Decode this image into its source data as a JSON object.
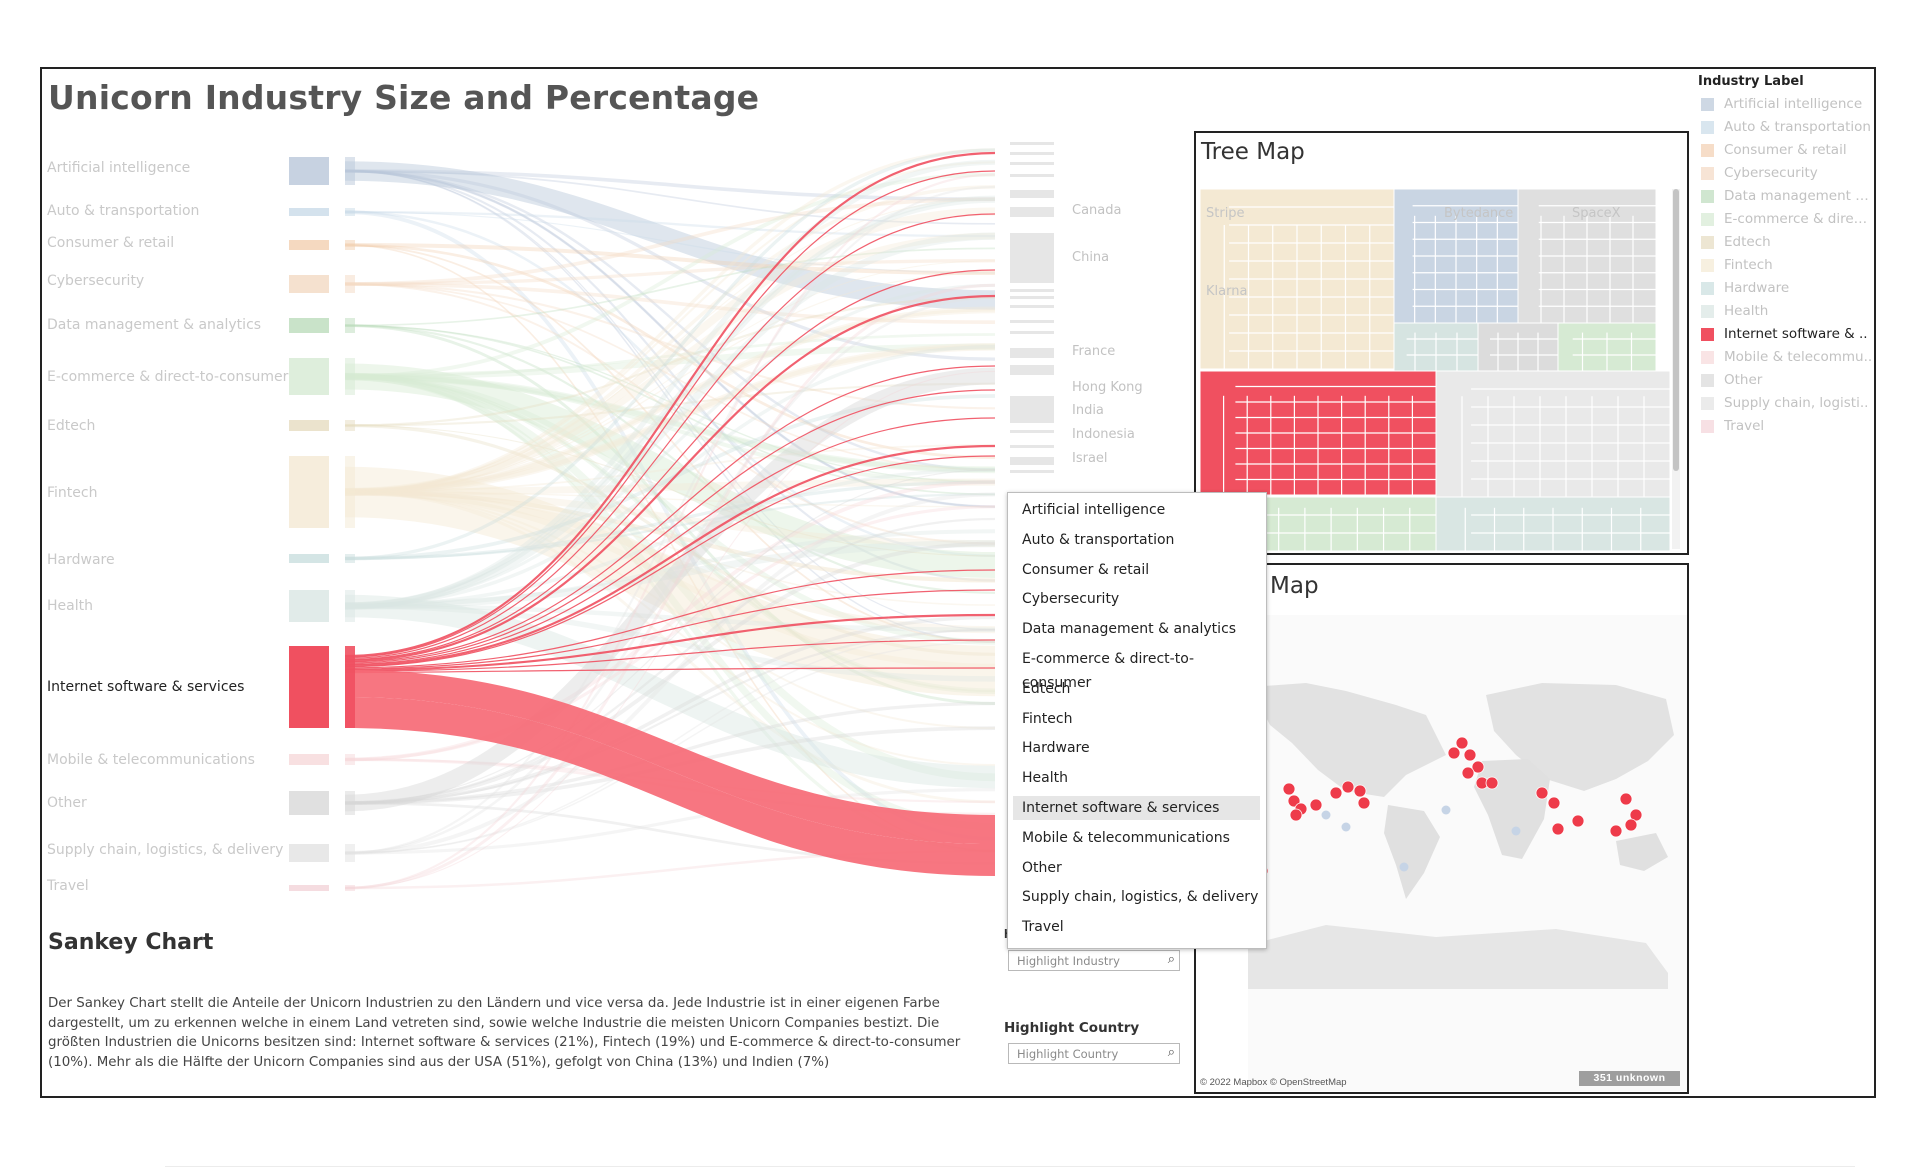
{
  "dashboard": {
    "title": "Unicorn Industry Size and Percentage"
  },
  "industries": [
    {
      "label": "Artificial intelligence",
      "color": "#b9c7d9",
      "active": false
    },
    {
      "label": "Auto & transportation",
      "color": "#c9dbe8",
      "active": false
    },
    {
      "label": "Consumer & retail",
      "color": "#f2cfb0",
      "active": false
    },
    {
      "label": "Cybersecurity",
      "color": "#f3d9c3",
      "active": false
    },
    {
      "label": "Data management & analytics",
      "color": "#bcdcbc",
      "active": false
    },
    {
      "label": "E-commerce & direct-to-consumer",
      "color": "#d6ead3",
      "active": false
    },
    {
      "label": "Edtech",
      "color": "#e6dcc0",
      "active": false
    },
    {
      "label": "Fintech",
      "color": "#f4e9d3",
      "active": false
    },
    {
      "label": "Hardware",
      "color": "#c9dede",
      "active": false
    },
    {
      "label": "Health",
      "color": "#d9e6e3",
      "active": false
    },
    {
      "label": "Internet software & services",
      "color": "#f05060",
      "active": true
    },
    {
      "label": "Mobile & telecommunications",
      "color": "#f6d8da",
      "active": false
    },
    {
      "label": "Other",
      "color": "#d8d8d8",
      "active": false
    },
    {
      "label": "Supply chain, logistics, & delivery",
      "color": "#e2e2e2",
      "active": false
    },
    {
      "label": "Travel",
      "color": "#f3d3d8",
      "active": false
    }
  ],
  "countries_visible": [
    "Canada",
    "China",
    "France",
    "Hong Kong",
    "India",
    "Indonesia",
    "Israel"
  ],
  "sankey": {
    "title": "Sankey Chart",
    "description": "Der Sankey Chart stellt die Anteile der Unicorn Industrien zu den Ländern und vice versa da. Jede Industrie ist in einer eigenen Farbe dargestellt, um zu erkennen welche in einem Land vetreten sind, sowie welche Industrie die meisten Unicorn Companies bestizt. Die größten Industrien die Unicorns besitzen sind: Internet software & services (21%), Fintech (19%) und E-commerce & direct-to-consumer (10%). Mehr als die Hälfte der Unicorn Companies sind aus der USA (51%), gefolgt von China (13%) und Indien (7%)"
  },
  "treemap": {
    "title": "Tree Map",
    "labels": [
      "Stripe",
      "Klarna",
      "Bytedance",
      "SpaceX"
    ]
  },
  "map": {
    "title": "Map",
    "attribution": "© 2022 Mapbox © OpenStreetMap",
    "unknown_badge": "351 unknown"
  },
  "legend": {
    "title": "Industry Label",
    "items": [
      "Artificial intelligence",
      "Auto & transportation",
      "Consumer & retail",
      "Cybersecurity",
      "Data management & ..",
      "E-commerce & direct..",
      "Edtech",
      "Fintech",
      "Hardware",
      "Health",
      "Internet software & ..",
      "Mobile & telecommu..",
      "Other",
      "Supply chain, logisti..",
      "Travel"
    ]
  },
  "filters": {
    "industry_dropdown_items": [
      "Artificial intelligence",
      "Auto & transportation",
      "Consumer & retail",
      "Cybersecurity",
      "Data management & analytics",
      "E-commerce & direct-to-consumer",
      "Edtech",
      "Fintech",
      "Hardware",
      "Health",
      "Internet software & services",
      "Mobile & telecommunications",
      "Other",
      "Supply chain, logistics, & delivery",
      "Travel"
    ],
    "industry_hovered": "Internet software & services",
    "highlight_industry_cut_label": "H",
    "highlight_industry_placeholder": "Highlight Industry",
    "highlight_country_label": "Highlight Country",
    "highlight_country_placeholder": "Highlight Country"
  }
}
